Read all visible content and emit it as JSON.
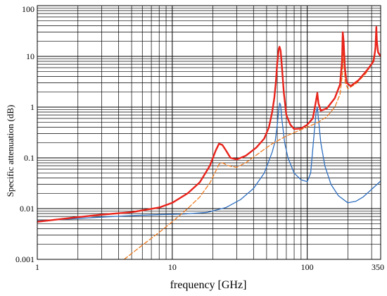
{
  "chart_data": {
    "type": "line",
    "title": "",
    "xlabel": "frequency [GHz]",
    "ylabel": "Specific attenuation (dB)",
    "x_scale": "log",
    "y_scale": "log",
    "xlim": [
      1,
      350
    ],
    "ylim": [
      0.001,
      100
    ],
    "grid": true,
    "legend": "none",
    "x_ticks": [
      {
        "value": 1,
        "label": "1"
      },
      {
        "value": 10,
        "label": "10"
      },
      {
        "value": 100,
        "label": "100"
      },
      {
        "value": 350,
        "label": "350"
      }
    ],
    "y_ticks": [
      {
        "value": 0.001,
        "label": "0.001"
      },
      {
        "value": 0.01,
        "label": "0.01"
      },
      {
        "value": 0.1,
        "label": "0.1"
      },
      {
        "value": 1,
        "label": "1"
      },
      {
        "value": 10,
        "label": "10"
      },
      {
        "value": 100,
        "label": "100"
      }
    ],
    "series": [
      {
        "color": "#2e6fc0",
        "style": "thin",
        "points": [
          [
            1,
            0.0057
          ],
          [
            2,
            0.0064
          ],
          [
            3,
            0.0068
          ],
          [
            5,
            0.0073
          ],
          [
            8,
            0.0076
          ],
          [
            12,
            0.0078
          ],
          [
            18,
            0.0084
          ],
          [
            25,
            0.0105
          ],
          [
            32,
            0.015
          ],
          [
            40,
            0.025
          ],
          [
            48,
            0.05
          ],
          [
            55,
            0.13
          ],
          [
            58,
            0.22
          ],
          [
            60,
            0.45
          ],
          [
            61.5,
            0.9
          ],
          [
            62.5,
            1.2
          ],
          [
            63.5,
            1.1
          ],
          [
            65,
            0.55
          ],
          [
            68,
            0.2
          ],
          [
            72,
            0.1
          ],
          [
            80,
            0.05
          ],
          [
            90,
            0.037
          ],
          [
            100,
            0.034
          ],
          [
            106,
            0.05
          ],
          [
            111,
            0.2
          ],
          [
            116,
            0.75
          ],
          [
            118.75,
            1.0
          ],
          [
            121,
            0.6
          ],
          [
            126,
            0.2
          ],
          [
            135,
            0.07
          ],
          [
            150,
            0.03
          ],
          [
            170,
            0.018
          ],
          [
            200,
            0.013
          ],
          [
            230,
            0.014
          ],
          [
            260,
            0.017
          ],
          [
            300,
            0.024
          ],
          [
            350,
            0.035
          ]
        ]
      },
      {
        "color": "#ee7b1f",
        "style": "thin-dashed",
        "points": [
          [
            4.4,
            0.001
          ],
          [
            6,
            0.0019
          ],
          [
            8,
            0.0034
          ],
          [
            10,
            0.0055
          ],
          [
            13,
            0.01
          ],
          [
            16,
            0.017
          ],
          [
            19,
            0.032
          ],
          [
            21,
            0.055
          ],
          [
            22.2,
            0.075
          ],
          [
            23.5,
            0.08
          ],
          [
            26,
            0.07
          ],
          [
            30,
            0.065
          ],
          [
            35,
            0.08
          ],
          [
            45,
            0.13
          ],
          [
            55,
            0.19
          ],
          [
            70,
            0.27
          ],
          [
            90,
            0.36
          ],
          [
            110,
            0.45
          ],
          [
            120,
            0.5
          ],
          [
            140,
            0.65
          ],
          [
            160,
            1.0
          ],
          [
            175,
            1.8
          ],
          [
            183,
            5
          ],
          [
            185,
            10
          ],
          [
            186,
            14
          ],
          [
            187.5,
            8
          ],
          [
            191,
            3
          ],
          [
            200,
            2.3
          ],
          [
            230,
            2.9
          ],
          [
            270,
            4.5
          ],
          [
            300,
            7
          ],
          [
            315,
            11
          ],
          [
            322,
            22
          ],
          [
            325,
            38
          ],
          [
            327,
            28
          ],
          [
            332,
            14
          ],
          [
            340,
            11
          ],
          [
            350,
            10
          ]
        ]
      },
      {
        "color": "#e8231b",
        "style": "thick",
        "points": [
          [
            1,
            0.0055
          ],
          [
            2,
            0.0068
          ],
          [
            3,
            0.0076
          ],
          [
            5,
            0.0085
          ],
          [
            8,
            0.0105
          ],
          [
            10,
            0.013
          ],
          [
            13,
            0.02
          ],
          [
            16,
            0.033
          ],
          [
            19,
            0.07
          ],
          [
            21,
            0.14
          ],
          [
            22.2,
            0.19
          ],
          [
            23.5,
            0.18
          ],
          [
            25,
            0.14
          ],
          [
            27,
            0.1
          ],
          [
            30,
            0.093
          ],
          [
            35,
            0.11
          ],
          [
            42,
            0.16
          ],
          [
            48,
            0.24
          ],
          [
            52,
            0.4
          ],
          [
            55,
            0.8
          ],
          [
            57,
            1.5
          ],
          [
            58.5,
            3
          ],
          [
            60,
            7.5
          ],
          [
            61.5,
            14
          ],
          [
            62.3,
            15.5
          ],
          [
            63.5,
            13
          ],
          [
            65,
            6
          ],
          [
            67,
            2
          ],
          [
            70,
            0.7
          ],
          [
            75,
            0.45
          ],
          [
            80,
            0.37
          ],
          [
            90,
            0.38
          ],
          [
            100,
            0.45
          ],
          [
            110,
            0.6
          ],
          [
            116,
            1.3
          ],
          [
            118.75,
            1.9
          ],
          [
            121,
            1.2
          ],
          [
            126,
            0.85
          ],
          [
            140,
            0.95
          ],
          [
            160,
            1.5
          ],
          [
            175,
            2.8
          ],
          [
            181,
            8
          ],
          [
            183.3,
            30
          ],
          [
            186,
            20
          ],
          [
            190,
            6
          ],
          [
            196,
            3
          ],
          [
            210,
            2.6
          ],
          [
            240,
            3.4
          ],
          [
            280,
            5.5
          ],
          [
            310,
            8
          ],
          [
            320,
            14
          ],
          [
            325,
            38
          ],
          [
            328,
            20
          ],
          [
            335,
            12
          ],
          [
            350,
            10
          ]
        ]
      }
    ]
  }
}
